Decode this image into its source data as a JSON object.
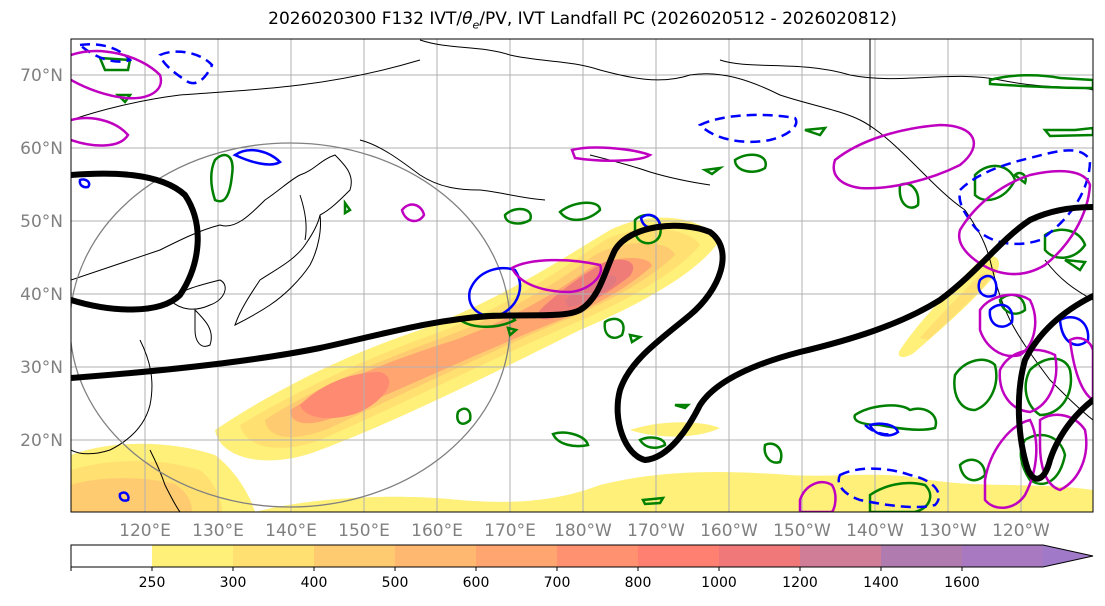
{
  "title": {
    "prefix": "2026020300 F132 IVT/",
    "theta": "θ",
    "theta_sub": "e",
    "suffix": "/PV, IVT Landfall PC (2026020512 - 2026020812)"
  },
  "lat_labels": [
    "70°N",
    "60°N",
    "50°N",
    "40°N",
    "30°N",
    "20°N"
  ],
  "lon_labels": [
    "120°E",
    "130°E",
    "140°E",
    "150°E",
    "160°E",
    "170°E",
    "180°W",
    "170°W",
    "160°W",
    "150°W",
    "140°W",
    "130°W",
    "120°W"
  ],
  "colorbar": {
    "levels": [
      "250",
      "300",
      "400",
      "500",
      "600",
      "700",
      "800",
      "1000",
      "1200",
      "1400",
      "1600"
    ],
    "colors": [
      "#ffffff",
      "#fff07a",
      "#ffe070",
      "#ffcb70",
      "#ffb870",
      "#ffa570",
      "#ff9070",
      "#ff8070",
      "#f07878",
      "#d07d98",
      "#b07cb0",
      "#a879c0",
      "#a07ac8"
    ]
  },
  "colors": {
    "contour_magenta": "#c000c0",
    "contour_green": "#008000",
    "contour_blue": "#0000ff",
    "pv_line": "#000000",
    "circle": "#808080",
    "grid": "#b0b0b0"
  }
}
